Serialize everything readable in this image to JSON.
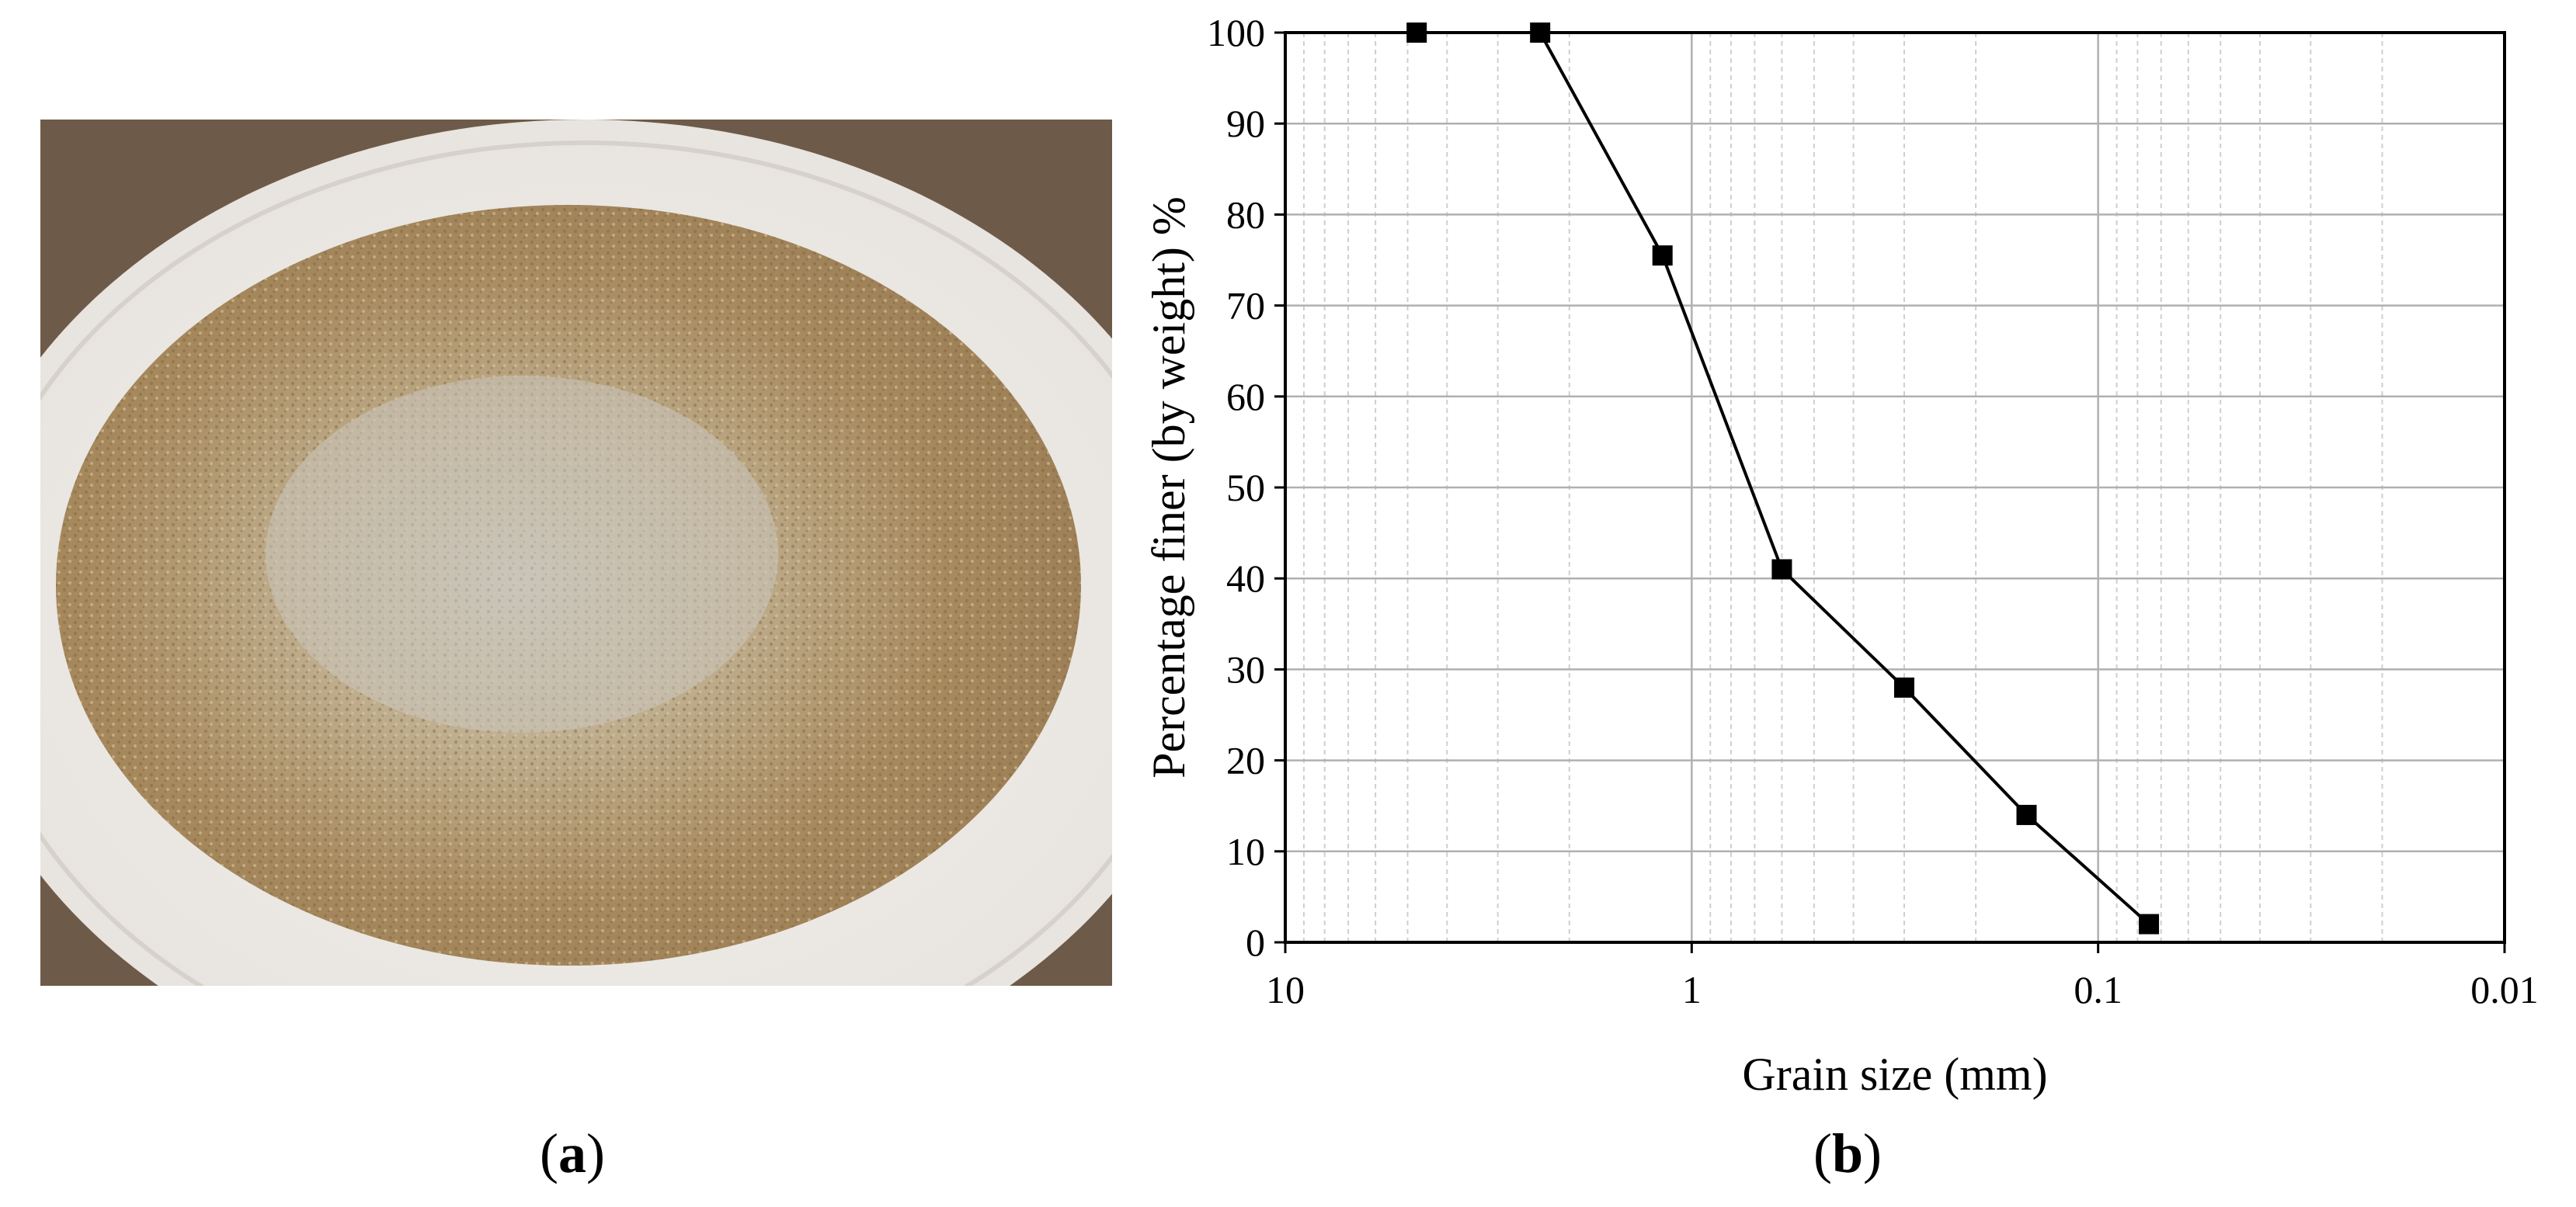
{
  "panels": {
    "a": {
      "label_open": "(",
      "letter": "a",
      "label_close": ")"
    },
    "b": {
      "label_open": "(",
      "letter": "b",
      "label_close": ")"
    }
  },
  "photo": {
    "subject": "sand sample on white plate"
  },
  "colors": {
    "line": "#000000",
    "marker": "#000000",
    "grid": "#b0b0b0",
    "grid_minor": "#cfcfcf"
  },
  "chart_data": {
    "type": "line",
    "title": "",
    "xlabel": "Grain size (mm)",
    "ylabel": "Percentage finer (by weight) %",
    "x_scale": "log",
    "x_reversed": true,
    "xlim": [
      10,
      0.01
    ],
    "ylim": [
      0,
      100
    ],
    "x_ticks": [
      "10",
      "1",
      "0.1",
      "0.01"
    ],
    "y_ticks": [
      "0",
      "10",
      "20",
      "30",
      "40",
      "50",
      "60",
      "70",
      "80",
      "90",
      "100"
    ],
    "grid": true,
    "legend": "none",
    "marker": "square",
    "x": [
      4.75,
      2.36,
      1.18,
      0.6,
      0.3,
      0.15,
      0.075
    ],
    "y": [
      100,
      100,
      75.5,
      41,
      28,
      14,
      2
    ]
  }
}
